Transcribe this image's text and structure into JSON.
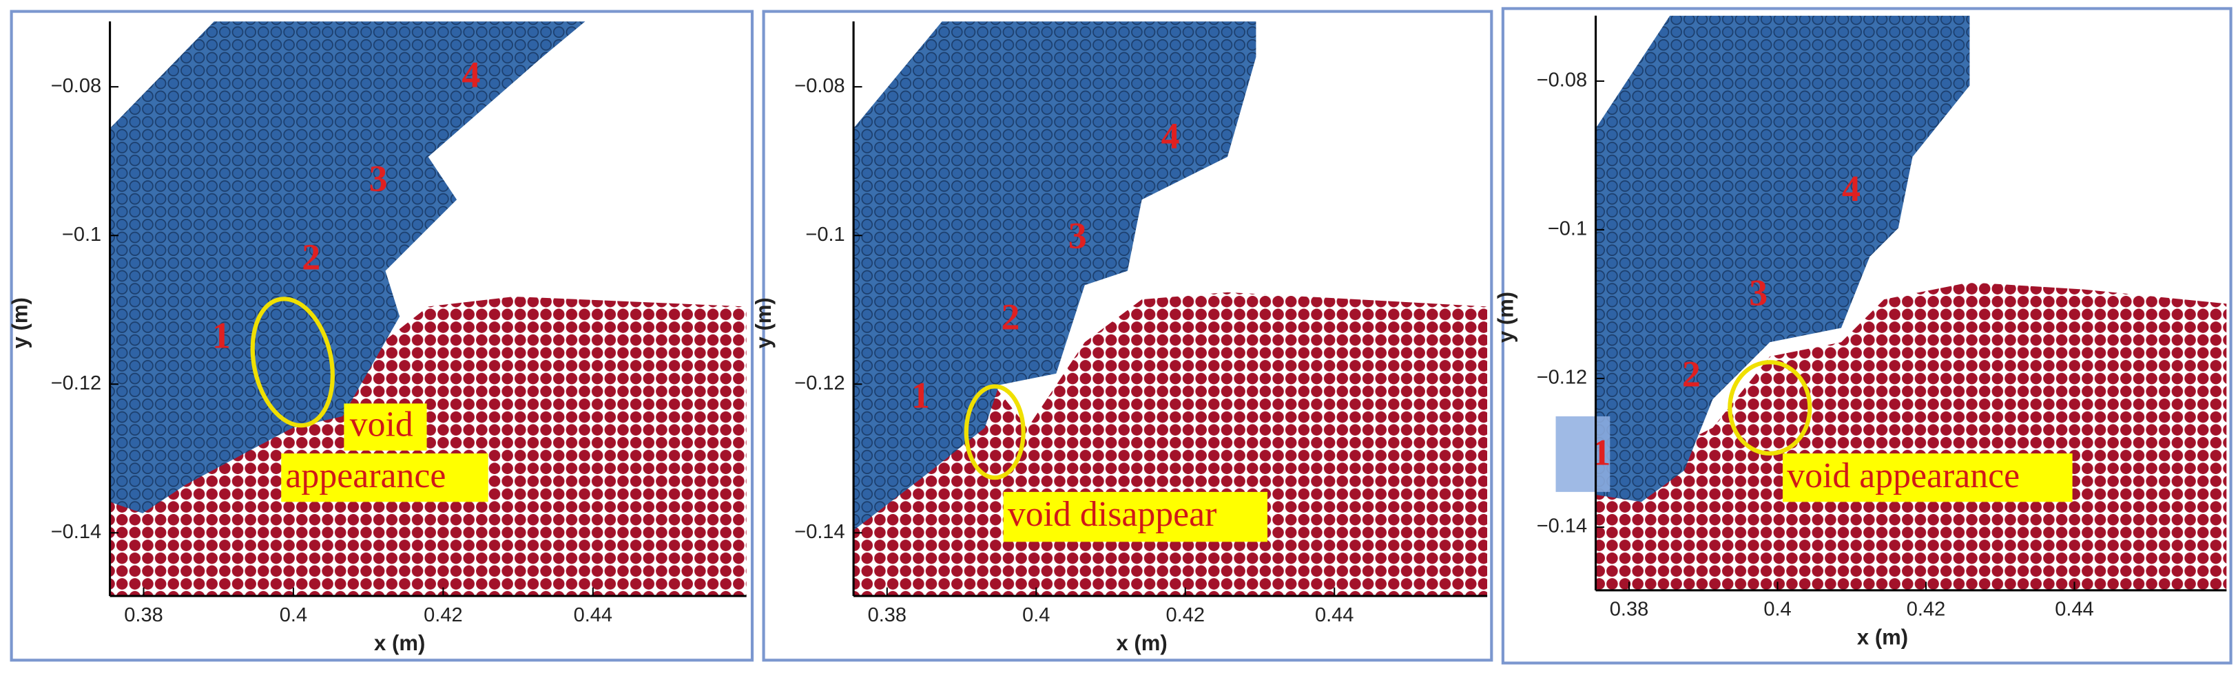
{
  "chart_data": [
    {
      "type": "particle-field",
      "xlabel": "x (m)",
      "ylabel": "y (m)",
      "xlim": [
        0.3755,
        0.4605
      ],
      "ylim": [
        -0.1485,
        -0.0712
      ],
      "xticks": [
        0.38,
        0.4,
        0.42,
        0.44
      ],
      "yticks": [
        {
          "value": -0.14,
          "label": "−0.14"
        },
        {
          "value": -0.12,
          "label": "−0.12"
        },
        {
          "value": -0.1,
          "label": "−0.1"
        },
        {
          "value": -0.08,
          "label": "−0.08"
        }
      ],
      "annotations": [
        "1",
        "2",
        "3",
        "4",
        "void",
        "appearance"
      ]
    },
    {
      "type": "particle-field",
      "xlabel": "x (m)",
      "ylabel": "y (m)",
      "xlim": [
        0.3755,
        0.4605
      ],
      "ylim": [
        -0.1485,
        -0.0712
      ],
      "xticks": [
        0.38,
        0.4,
        0.42,
        0.44
      ],
      "yticks": [
        {
          "value": -0.14,
          "label": "−0.14"
        },
        {
          "value": -0.12,
          "label": "−0.12"
        },
        {
          "value": -0.1,
          "label": "−0.1"
        },
        {
          "value": -0.08,
          "label": "−0.08"
        }
      ],
      "annotations": [
        "1",
        "2",
        "3",
        "4",
        "void disappear"
      ]
    },
    {
      "type": "particle-field",
      "xlabel": "x (m)",
      "ylabel": "y (m)",
      "xlim": [
        0.3755,
        0.4605
      ],
      "ylim": [
        -0.1485,
        -0.0712
      ],
      "xticks": [
        0.38,
        0.4,
        0.42,
        0.44
      ],
      "yticks": [
        {
          "value": -0.14,
          "label": "−0.14"
        },
        {
          "value": -0.12,
          "label": "−0.12"
        },
        {
          "value": -0.1,
          "label": "−0.1"
        },
        {
          "value": -0.08,
          "label": "−0.08"
        }
      ],
      "annotations": [
        "1",
        "2",
        "3",
        "4",
        "void appearance"
      ]
    }
  ]
}
